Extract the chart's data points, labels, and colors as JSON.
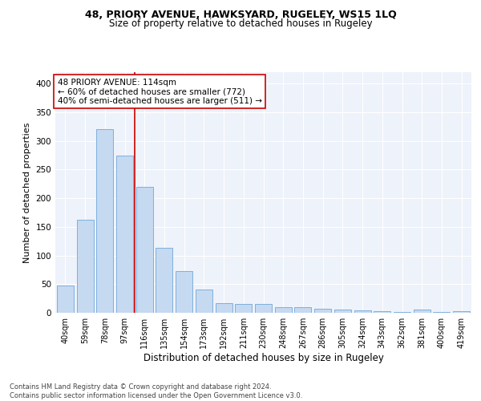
{
  "title1": "48, PRIORY AVENUE, HAWKSYARD, RUGELEY, WS15 1LQ",
  "title2": "Size of property relative to detached houses in Rugeley",
  "xlabel": "Distribution of detached houses by size in Rugeley",
  "ylabel": "Number of detached properties",
  "categories": [
    "40sqm",
    "59sqm",
    "78sqm",
    "97sqm",
    "116sqm",
    "135sqm",
    "154sqm",
    "173sqm",
    "192sqm",
    "211sqm",
    "230sqm",
    "248sqm",
    "267sqm",
    "286sqm",
    "305sqm",
    "324sqm",
    "343sqm",
    "362sqm",
    "381sqm",
    "400sqm",
    "419sqm"
  ],
  "values": [
    47,
    163,
    320,
    275,
    220,
    113,
    73,
    40,
    17,
    15,
    15,
    10,
    10,
    7,
    5,
    4,
    3,
    2,
    5,
    2,
    3
  ],
  "bar_color": "#c5d9f0",
  "bar_edge_color": "#5b9bd5",
  "vline_x": 4.0,
  "vline_color": "#cc0000",
  "annotation_text": "48 PRIORY AVENUE: 114sqm\n← 60% of detached houses are smaller (772)\n40% of semi-detached houses are larger (511) →",
  "annotation_box_color": "#ffffff",
  "annotation_box_edge": "#cc0000",
  "footer": "Contains HM Land Registry data © Crown copyright and database right 2024.\nContains public sector information licensed under the Open Government Licence v3.0.",
  "ylim": [
    0,
    420
  ],
  "yticks": [
    0,
    50,
    100,
    150,
    200,
    250,
    300,
    350,
    400
  ],
  "background_color": "#eef2fa",
  "grid_color": "#ffffff",
  "title1_fontsize": 9,
  "title2_fontsize": 8.5,
  "tick_fontsize": 7,
  "ylabel_fontsize": 8,
  "xlabel_fontsize": 8.5,
  "annotation_fontsize": 7.5,
  "footer_fontsize": 6
}
